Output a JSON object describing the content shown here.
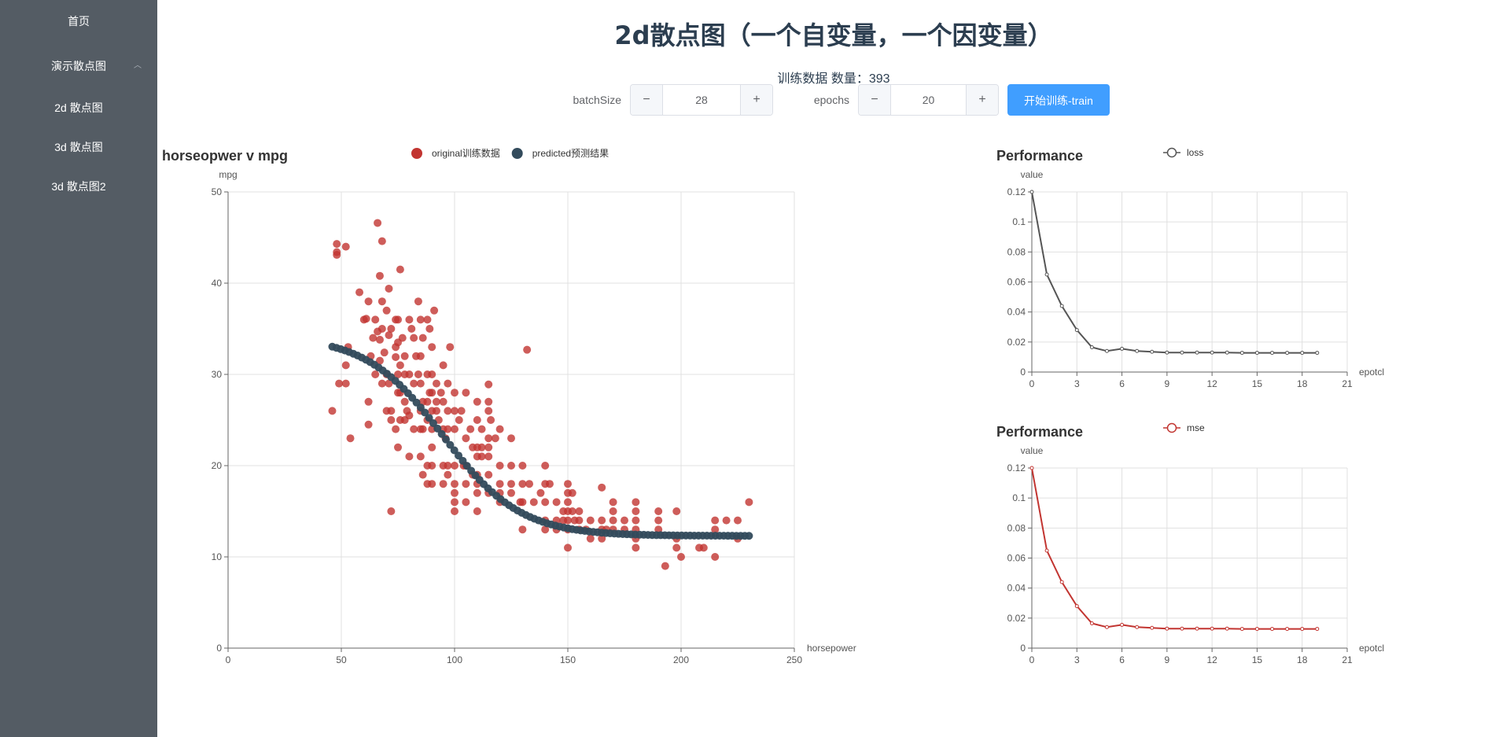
{
  "sidebar": {
    "items": [
      {
        "label": "首页"
      },
      {
        "label": "演示散点图"
      },
      {
        "label": "2d 散点图"
      },
      {
        "label": "3d 散点图"
      },
      {
        "label": "3d 散点图2"
      }
    ],
    "background": "#545c64",
    "text_color": "#ffffff"
  },
  "header": {
    "title": "2d散点图（一个自变量，一个因变量）",
    "train_info": "训练数据 数量：393"
  },
  "controls": {
    "batch_label": "batchSize",
    "batch_value": "28",
    "epochs_label": "epochs",
    "epochs_value": "20",
    "minus_symbol": "−",
    "plus_symbol": "+",
    "train_button": "开始训练-train",
    "accent": "#409eff"
  },
  "chart_data": [
    {
      "type": "scatter",
      "title": "horseopwer v mpg",
      "xlabel": "horsepower",
      "ylabel": "mpg",
      "xlim": [
        0,
        250
      ],
      "ylim": [
        0,
        50
      ],
      "xticks": [
        "0",
        "50",
        "100",
        "150",
        "200",
        "250"
      ],
      "yticks": [
        "0",
        "10",
        "20",
        "30",
        "40",
        "50"
      ],
      "grid": true,
      "legend_position": "top",
      "series": [
        {
          "name": "original训练数据",
          "color": "#c23531",
          "points": [
            [
              46,
              26
            ],
            [
              48,
              44.3
            ],
            [
              48,
              43.4
            ],
            [
              48,
              43.1
            ],
            [
              49,
              29
            ],
            [
              52,
              44
            ],
            [
              52,
              31
            ],
            [
              52,
              29
            ],
            [
              53,
              33
            ],
            [
              54,
              23
            ],
            [
              58,
              39
            ],
            [
              60,
              36
            ],
            [
              61,
              36.1
            ],
            [
              62,
              27
            ],
            [
              62,
              24.5
            ],
            [
              62,
              38
            ],
            [
              63,
              32
            ],
            [
              64,
              34
            ],
            [
              65,
              30
            ],
            [
              65,
              36
            ],
            [
              66,
              46.6
            ],
            [
              66,
              34.7
            ],
            [
              67,
              40.8
            ],
            [
              67,
              33.8
            ],
            [
              67,
              31.5
            ],
            [
              68,
              44.6
            ],
            [
              68,
              38
            ],
            [
              68,
              35
            ],
            [
              68,
              29
            ],
            [
              69,
              32.4
            ],
            [
              70,
              37
            ],
            [
              70,
              30
            ],
            [
              70,
              26
            ],
            [
              71,
              39.4
            ],
            [
              71,
              34.3
            ],
            [
              71,
              29
            ],
            [
              72,
              35
            ],
            [
              72,
              26
            ],
            [
              72,
              25
            ],
            [
              72,
              15
            ],
            [
              74,
              36
            ],
            [
              74,
              33
            ],
            [
              74,
              31.9
            ],
            [
              74,
              24
            ],
            [
              75,
              36
            ],
            [
              75,
              33.5
            ],
            [
              75,
              30
            ],
            [
              75,
              28
            ],
            [
              75,
              22
            ],
            [
              76,
              41.5
            ],
            [
              76,
              31
            ],
            [
              76,
              28
            ],
            [
              76,
              25
            ],
            [
              77,
              34
            ],
            [
              78,
              32
            ],
            [
              78,
              30
            ],
            [
              78,
              27
            ],
            [
              78,
              25
            ],
            [
              79,
              26
            ],
            [
              80,
              36
            ],
            [
              80,
              30
            ],
            [
              80,
              25.5
            ],
            [
              80,
              21
            ],
            [
              81,
              35
            ],
            [
              82,
              34
            ],
            [
              82,
              29
            ],
            [
              82,
              24
            ],
            [
              83,
              32
            ],
            [
              84,
              38
            ],
            [
              84,
              30
            ],
            [
              85,
              36
            ],
            [
              85,
              32
            ],
            [
              85,
              29
            ],
            [
              85,
              26
            ],
            [
              85,
              24
            ],
            [
              85,
              21
            ],
            [
              86,
              34
            ],
            [
              86,
              27
            ],
            [
              86,
              24
            ],
            [
              86,
              19
            ],
            [
              88,
              36
            ],
            [
              88,
              30
            ],
            [
              88,
              27
            ],
            [
              88,
              25
            ],
            [
              88,
              20
            ],
            [
              88,
              18
            ],
            [
              89,
              35
            ],
            [
              89,
              28
            ],
            [
              90,
              33
            ],
            [
              90,
              30
            ],
            [
              90,
              28
            ],
            [
              90,
              26
            ],
            [
              90,
              24
            ],
            [
              90,
              22
            ],
            [
              90,
              20
            ],
            [
              90,
              18
            ],
            [
              91,
              37
            ],
            [
              92,
              29
            ],
            [
              92,
              27
            ],
            [
              92,
              26
            ],
            [
              93,
              25
            ],
            [
              94,
              28
            ],
            [
              95,
              31
            ],
            [
              95,
              27
            ],
            [
              95,
              24
            ],
            [
              95,
              20
            ],
            [
              95,
              18
            ],
            [
              96,
              23
            ],
            [
              97,
              29
            ],
            [
              97,
              26
            ],
            [
              97,
              24
            ],
            [
              97,
              20
            ],
            [
              97,
              19
            ],
            [
              98,
              33
            ],
            [
              100,
              28
            ],
            [
              100,
              26
            ],
            [
              100,
              24
            ],
            [
              100,
              20
            ],
            [
              100,
              18
            ],
            [
              100,
              17
            ],
            [
              100,
              16
            ],
            [
              100,
              15
            ],
            [
              102,
              25
            ],
            [
              103,
              26
            ],
            [
              104,
              20
            ],
            [
              105,
              28
            ],
            [
              105,
              23
            ],
            [
              105,
              20
            ],
            [
              105,
              18
            ],
            [
              105,
              16
            ],
            [
              107,
              24
            ],
            [
              108,
              22
            ],
            [
              108,
              19
            ],
            [
              110,
              27
            ],
            [
              110,
              25
            ],
            [
              110,
              22
            ],
            [
              110,
              21
            ],
            [
              110,
              19
            ],
            [
              110,
              18
            ],
            [
              110,
              17
            ],
            [
              110,
              15
            ],
            [
              112,
              24
            ],
            [
              112,
              22
            ],
            [
              112,
              21
            ],
            [
              115,
              28.9
            ],
            [
              115,
              27
            ],
            [
              115,
              26
            ],
            [
              115,
              23
            ],
            [
              115,
              22
            ],
            [
              115,
              21
            ],
            [
              115,
              19
            ],
            [
              115,
              17
            ],
            [
              116,
              25
            ],
            [
              118,
              23
            ],
            [
              120,
              24
            ],
            [
              120,
              20
            ],
            [
              120,
              18
            ],
            [
              120,
              17
            ],
            [
              120,
              16
            ],
            [
              125,
              23
            ],
            [
              125,
              20
            ],
            [
              125,
              18
            ],
            [
              125,
              17
            ],
            [
              129,
              16
            ],
            [
              130,
              20
            ],
            [
              130,
              18
            ],
            [
              130,
              16
            ],
            [
              130,
              13
            ],
            [
              132,
              32.7
            ],
            [
              133,
              18
            ],
            [
              135,
              16
            ],
            [
              138,
              17
            ],
            [
              140,
              20
            ],
            [
              140,
              18
            ],
            [
              140,
              16
            ],
            [
              140,
              14
            ],
            [
              140,
              13
            ],
            [
              142,
              18
            ],
            [
              145,
              16
            ],
            [
              145,
              14
            ],
            [
              145,
              13
            ],
            [
              148,
              15
            ],
            [
              148,
              14
            ],
            [
              150,
              18
            ],
            [
              150,
              17
            ],
            [
              150,
              16
            ],
            [
              150,
              15
            ],
            [
              150,
              14
            ],
            [
              150,
              13
            ],
            [
              150,
              11
            ],
            [
              152,
              17
            ],
            [
              152,
              15
            ],
            [
              153,
              14
            ],
            [
              155,
              15
            ],
            [
              155,
              14
            ],
            [
              155,
              13
            ],
            [
              158,
              13
            ],
            [
              160,
              14
            ],
            [
              160,
              12
            ],
            [
              165,
              17.6
            ],
            [
              165,
              14
            ],
            [
              165,
              13
            ],
            [
              165,
              12
            ],
            [
              167,
              13
            ],
            [
              170,
              16
            ],
            [
              170,
              15
            ],
            [
              170,
              14
            ],
            [
              170,
              13
            ],
            [
              175,
              14
            ],
            [
              175,
              13
            ],
            [
              180,
              16
            ],
            [
              180,
              15
            ],
            [
              180,
              14
            ],
            [
              180,
              13
            ],
            [
              180,
              12
            ],
            [
              180,
              11
            ],
            [
              190,
              15
            ],
            [
              190,
              14
            ],
            [
              190,
              13
            ],
            [
              193,
              9
            ],
            [
              198,
              15
            ],
            [
              198,
              12
            ],
            [
              198,
              11
            ],
            [
              200,
              10
            ],
            [
              208,
              11
            ],
            [
              210,
              11
            ],
            [
              215,
              14
            ],
            [
              215,
              13
            ],
            [
              215,
              10
            ],
            [
              220,
              14
            ],
            [
              225,
              14
            ],
            [
              225,
              12
            ],
            [
              230,
              16
            ]
          ]
        },
        {
          "name": "predicted预测结果",
          "color": "#334b5c",
          "curve": {
            "x_start": 46,
            "x_end": 230,
            "count": 100,
            "low": 12.3,
            "high": 34.2,
            "mid": 95,
            "width": 17
          }
        }
      ]
    },
    {
      "type": "line",
      "title": "Performance",
      "xlabel": "epotcl",
      "ylabel": "value",
      "series": [
        {
          "name": "loss",
          "color": "#555555",
          "values": [
            0.12,
            0.065,
            0.044,
            0.028,
            0.0165,
            0.014,
            0.0155,
            0.014,
            0.0135,
            0.013,
            0.013,
            0.013,
            0.013,
            0.013,
            0.0128,
            0.0128,
            0.0128,
            0.0128,
            0.0128,
            0.0128
          ]
        }
      ],
      "xlim": [
        0,
        21
      ],
      "ylim": [
        0,
        0.12
      ],
      "xticks": [
        "0",
        "3",
        "6",
        "9",
        "12",
        "15",
        "18",
        "21"
      ],
      "yticks": [
        "0",
        "0.02",
        "0.04",
        "0.06",
        "0.08",
        "0.1",
        "0.12"
      ],
      "grid": true,
      "legend_position": "top"
    },
    {
      "type": "line",
      "title": "Performance",
      "xlabel": "epotcl",
      "ylabel": "value",
      "series": [
        {
          "name": "mse",
          "color": "#c23531",
          "values": [
            0.12,
            0.065,
            0.044,
            0.028,
            0.0165,
            0.014,
            0.0155,
            0.014,
            0.0135,
            0.013,
            0.013,
            0.013,
            0.013,
            0.013,
            0.0128,
            0.0128,
            0.0128,
            0.0128,
            0.0128,
            0.0128
          ]
        }
      ],
      "xlim": [
        0,
        21
      ],
      "ylim": [
        0,
        0.12
      ],
      "xticks": [
        "0",
        "3",
        "6",
        "9",
        "12",
        "15",
        "18",
        "21"
      ],
      "yticks": [
        "0",
        "0.02",
        "0.04",
        "0.06",
        "0.08",
        "0.1",
        "0.12"
      ],
      "grid": true,
      "legend_position": "top"
    }
  ]
}
